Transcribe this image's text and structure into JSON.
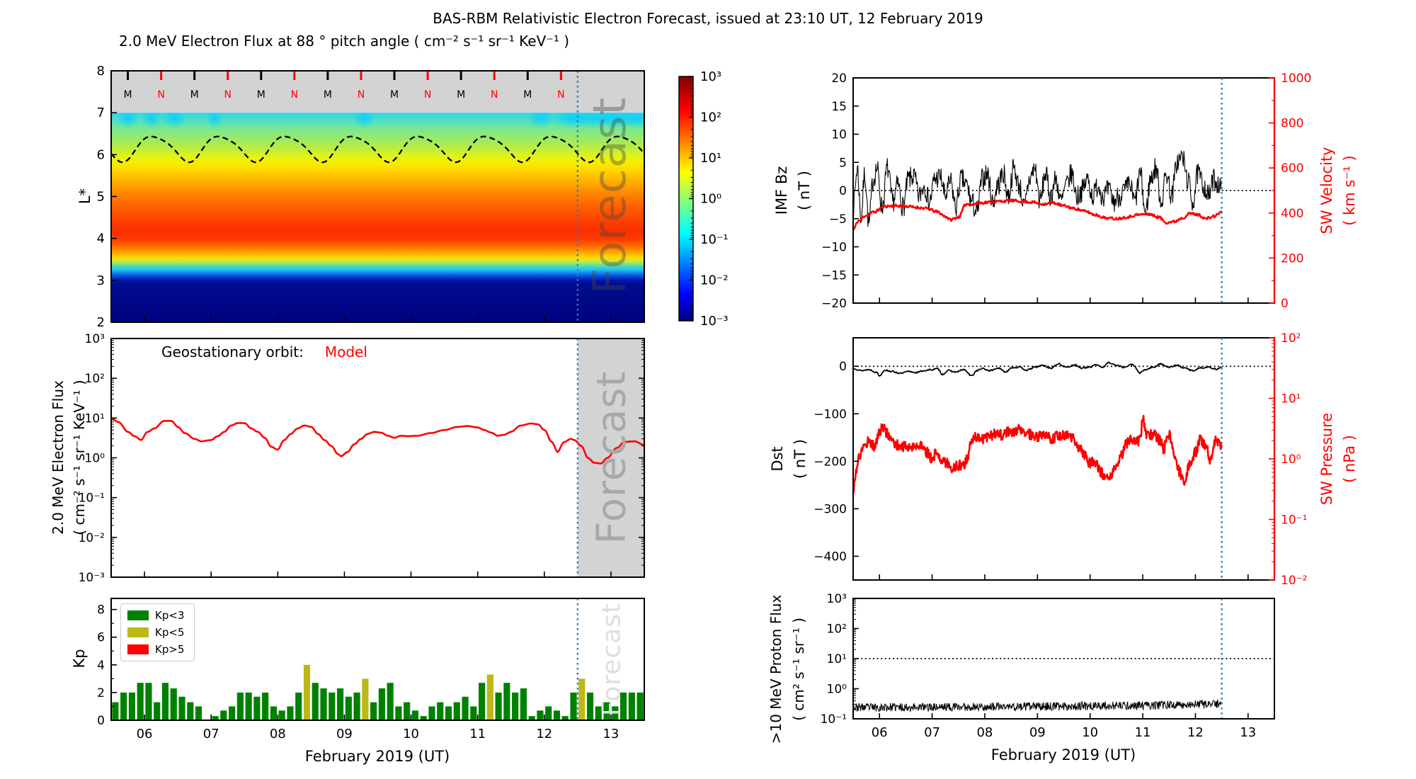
{
  "title": "BAS-RBM Relativistic Electron Forecast, issued at 23:10 UT, 12 February 2019",
  "watermark_label": "Forecast",
  "x_axis": {
    "label": "February 2019 (UT)",
    "range_days": [
      5.5,
      13.5
    ],
    "tick_values": [
      6,
      7,
      8,
      9,
      10,
      11,
      12,
      13
    ],
    "tick_labels": [
      "06",
      "07",
      "08",
      "09",
      "10",
      "11",
      "12",
      "13"
    ],
    "forecast_start_day": 12.5
  },
  "colors": {
    "forecast_line": "#2e7ebc",
    "model_red": "#ff0000",
    "kp_green": "#008000",
    "kp_yellow": "#bcb818",
    "kp_red": "#ff0000",
    "gray_band": "#d3d3d3",
    "forecast_shade": "#d3d3d3",
    "jet_colorbar_top_to_bottom": [
      "#800000",
      "#ff0000",
      "#ffff00",
      "#00ffff",
      "#0000ff",
      "#000080"
    ]
  },
  "panels": {
    "spectrogram": {
      "title": "2.0 MeV Electron Flux at 88 ° pitch angle ( cm⁻² s⁻¹ sr⁻¹ KeV⁻¹ )",
      "ylabel": "L*"
    },
    "geo_flux": {
      "ylabel_line1": "2.0 MeV Electron Flux",
      "ylabel_line2": "( cm⁻² s⁻¹ sr⁻¹ KeV⁻¹ )",
      "legend_prefix": "Geostationary orbit:",
      "legend_series": "Model"
    },
    "kp": {
      "ylabel": "Kp",
      "legend": [
        {
          "label": "Kp<3",
          "color": "#008000"
        },
        {
          "label": "Kp<5",
          "color": "#bcb818"
        },
        {
          "label": "Kp>5",
          "color": "#ff0000"
        }
      ]
    },
    "bz_vel": {
      "left_label_line1": "IMF Bz",
      "left_label_line2": "( nT )",
      "right_label_line1": "SW Velocity",
      "right_label_line2": "( km s⁻¹ )"
    },
    "dst_pres": {
      "left_label_line1": "Dst",
      "left_label_line2": "( nT )",
      "right_label_line1": "SW Pressure",
      "right_label_line2": "( nPa )"
    },
    "proton": {
      "ylabel_line1": ">10 MeV Proton Flux",
      "ylabel_line2": "( cm² s⁻¹ sr⁻¹ )"
    }
  },
  "chart_data": [
    {
      "id": "electron_flux_spectrogram",
      "type": "heatmap",
      "ylabel": "L*",
      "ylim": [
        2,
        8
      ],
      "ytick_values": [
        8,
        7,
        6,
        5,
        4,
        3,
        2
      ],
      "colormap": "jet",
      "colorbar": {
        "scale": "log",
        "limits_exponents": [
          3,
          -3
        ],
        "tick_exponents": [
          3,
          2,
          1,
          0,
          -1,
          -2,
          -3
        ]
      },
      "gray_band_Lstar": [
        7,
        8
      ],
      "flux_vs_Lstar_profile": [
        [
          7.0,
          0.2
        ],
        [
          6.6,
          1
        ],
        [
          6.2,
          4
        ],
        [
          6.0,
          10
        ],
        [
          5.8,
          25
        ],
        [
          5.5,
          60
        ],
        [
          5.0,
          200
        ],
        [
          4.6,
          400
        ],
        [
          4.2,
          500
        ],
        [
          3.9,
          150
        ],
        [
          3.7,
          30
        ],
        [
          3.5,
          5
        ],
        [
          3.3,
          0.3
        ],
        [
          3.15,
          0.02
        ],
        [
          3.0,
          0.002
        ],
        [
          2.0,
          0.001
        ]
      ],
      "noon_midnight_markers": {
        "start_day": 5.75,
        "step_days": 0.5,
        "count": 14,
        "alternation": [
          "M",
          "N"
        ],
        "midnight_color": "#000000",
        "noon_color": "#ff0000"
      },
      "geo_orbit_dashed_line": {
        "mean_Lstar": 6.16,
        "amplitude": 0.3,
        "period_days": 1.0,
        "phase_day": 5.9
      },
      "cyan_patch_times": [
        5.75,
        6.1,
        6.45,
        7.05,
        9.3,
        11.95,
        12.4,
        12.75,
        13.1,
        13.4
      ],
      "forecast_start_day": 12.5
    },
    {
      "id": "geo_electron_flux",
      "type": "line",
      "color": "#ff0000",
      "yscale": "log",
      "ylim_exponents": [
        3,
        -3
      ],
      "x": [
        5.5,
        5.6,
        5.75,
        5.85,
        5.95,
        6.05,
        6.15,
        6.3,
        6.4,
        6.5,
        6.6,
        6.75,
        6.85,
        7.0,
        7.1,
        7.2,
        7.3,
        7.4,
        7.5,
        7.6,
        7.7,
        7.8,
        7.9,
        8.0,
        8.1,
        8.2,
        8.3,
        8.4,
        8.5,
        8.6,
        8.7,
        8.8,
        8.9,
        8.95,
        9.05,
        9.15,
        9.25,
        9.35,
        9.45,
        9.55,
        9.65,
        9.75,
        9.85,
        9.95,
        10.1,
        10.3,
        10.5,
        10.7,
        10.85,
        11.0,
        11.1,
        11.2,
        11.3,
        11.4,
        11.5,
        11.65,
        11.8,
        11.9,
        12.0,
        12.1,
        12.2,
        12.3,
        12.4,
        12.45,
        12.55,
        12.65,
        12.75,
        12.85,
        12.95,
        13.1,
        13.2,
        13.35,
        13.5
      ],
      "y": [
        10,
        8,
        4.5,
        3.5,
        2.8,
        4.5,
        5.5,
        8.5,
        8.5,
        6,
        4.2,
        3.0,
        2.6,
        2.8,
        3.5,
        4.5,
        6.5,
        7.5,
        7.5,
        5.5,
        4.5,
        3.2,
        1.9,
        1.6,
        2.8,
        4.0,
        5.5,
        6.5,
        6.0,
        4.0,
        2.8,
        2.0,
        1.25,
        1.1,
        1.4,
        2.2,
        3.0,
        4.0,
        4.5,
        4.3,
        3.6,
        3.2,
        3.6,
        3.5,
        3.6,
        4.2,
        5.0,
        6.0,
        6.3,
        5.8,
        5.0,
        4.3,
        3.6,
        3.8,
        4.5,
        6.5,
        7.3,
        7.0,
        5.0,
        2.6,
        1.4,
        2.5,
        3.0,
        2.8,
        2.0,
        1.0,
        0.75,
        0.72,
        1.0,
        1.8,
        2.5,
        2.6,
        2.1
      ]
    },
    {
      "id": "kp_index",
      "type": "bar",
      "ylim": [
        0,
        8.8
      ],
      "ytick_values": [
        8,
        6,
        4,
        2,
        0
      ],
      "bar_start_day": 5.5,
      "bar_interval_days": 0.125,
      "color_rule": "green if Kp<3, yellow if 3<=Kp<5, red if Kp>5",
      "values": [
        1.3,
        2.0,
        2.0,
        2.7,
        2.7,
        1.3,
        2.7,
        2.3,
        1.7,
        1.3,
        1.0,
        0.0,
        0.3,
        0.7,
        1.0,
        2.0,
        2.0,
        1.7,
        2.0,
        1.0,
        0.7,
        1.0,
        2.0,
        4.0,
        2.7,
        2.3,
        2.0,
        2.3,
        1.7,
        2.0,
        3.0,
        1.3,
        2.3,
        2.7,
        1.0,
        1.3,
        0.7,
        0.3,
        1.0,
        1.3,
        1.0,
        1.3,
        1.7,
        1.0,
        2.7,
        3.3,
        2.0,
        2.7,
        2.0,
        2.3,
        0.3,
        0.7,
        1.0,
        0.7,
        0.3,
        2.0,
        3.0,
        2.0,
        1.0,
        1.3,
        1.0,
        2.0,
        2.0,
        2.0
      ]
    },
    {
      "id": "imf_bz_sw_velocity",
      "type": "line",
      "series": [
        {
          "name": "IMF Bz",
          "units": "nT",
          "color": "#000000",
          "axis": "left",
          "ylim": [
            -20,
            20
          ],
          "ytick_labels": [
            "20",
            "15",
            "10",
            "5",
            "0",
            "−5",
            "−10",
            "−15",
            "−20"
          ],
          "ytick_values": [
            20,
            15,
            10,
            5,
            0,
            -5,
            -10,
            -15,
            -20
          ],
          "zero_reference_line": 0,
          "noise_amplitude": 2.0,
          "x": [
            5.5,
            5.58,
            5.65,
            5.72,
            5.8,
            5.88,
            5.95,
            6.05,
            6.15,
            6.25,
            6.35,
            6.45,
            6.55,
            6.65,
            6.75,
            6.85,
            6.95,
            7.05,
            7.15,
            7.25,
            7.35,
            7.45,
            7.55,
            7.65,
            7.75,
            7.85,
            7.95,
            8.05,
            8.15,
            8.25,
            8.35,
            8.45,
            8.55,
            8.65,
            8.75,
            8.85,
            8.95,
            9.05,
            9.15,
            9.25,
            9.35,
            9.45,
            9.55,
            9.65,
            9.75,
            9.85,
            9.95,
            10.05,
            10.15,
            10.25,
            10.35,
            10.45,
            10.55,
            10.65,
            10.75,
            10.85,
            10.95,
            11.05,
            11.15,
            11.25,
            11.35,
            11.45,
            11.55,
            11.65,
            11.75,
            11.85,
            11.95,
            12.05,
            12.15,
            12.25,
            12.35,
            12.45,
            12.5
          ],
          "y": [
            -3,
            4,
            -5,
            3,
            -6,
            2,
            4,
            -3,
            4,
            -2,
            1,
            -3,
            2,
            2.5,
            -1,
            1,
            -2,
            2,
            2.5,
            -1,
            1.5,
            -3,
            2,
            1,
            -2,
            -4,
            2,
            3,
            -2,
            1,
            3,
            -1,
            4,
            1,
            -3,
            2,
            4,
            -2,
            3,
            -1,
            2,
            -2,
            1,
            3,
            -1,
            0,
            2,
            -1,
            1,
            -1,
            0,
            -2,
            -1,
            0,
            1,
            -2,
            3,
            -4,
            2,
            4,
            -2,
            3,
            -1,
            5,
            6,
            2,
            -2,
            3,
            1,
            -1,
            2,
            1,
            0
          ]
        },
        {
          "name": "SW Velocity",
          "units": "km s⁻¹",
          "color": "#ff0000",
          "axis": "right",
          "ylim": [
            0,
            1000
          ],
          "ytick_labels": [
            "1000",
            "800",
            "600",
            "400",
            "200",
            "0"
          ],
          "ytick_values": [
            1000,
            800,
            600,
            400,
            200,
            0
          ],
          "noise_amplitude": 6,
          "x": [
            5.5,
            5.6,
            5.75,
            5.9,
            6.1,
            6.3,
            6.5,
            6.7,
            6.9,
            7.1,
            7.25,
            7.35,
            7.5,
            7.65,
            7.75,
            7.9,
            8.1,
            8.3,
            8.5,
            8.7,
            8.9,
            9.1,
            9.3,
            9.5,
            9.7,
            9.9,
            10.1,
            10.3,
            10.5,
            10.7,
            10.9,
            11.1,
            11.3,
            11.45,
            11.6,
            11.75,
            11.9,
            12.05,
            12.2,
            12.35,
            12.5
          ],
          "y": [
            325,
            365,
            390,
            405,
            430,
            432,
            430,
            425,
            420,
            405,
            385,
            370,
            382,
            440,
            438,
            445,
            448,
            452,
            455,
            452,
            448,
            440,
            445,
            432,
            420,
            408,
            392,
            378,
            375,
            382,
            392,
            396,
            382,
            358,
            362,
            378,
            398,
            392,
            375,
            385,
            405
          ]
        }
      ]
    },
    {
      "id": "dst_sw_pressure",
      "type": "line",
      "series": [
        {
          "name": "Dst",
          "units": "nT",
          "color": "#000000",
          "axis": "left",
          "ylim": [
            -450,
            60
          ],
          "ytick_labels": [
            "0",
            "−100",
            "−200",
            "−300",
            "−400"
          ],
          "ytick_values": [
            0,
            -100,
            -200,
            -300,
            -400
          ],
          "zero_reference_line": 0,
          "noise_amplitude": 1.5,
          "x": [
            5.5,
            5.65,
            5.8,
            5.95,
            6.0,
            6.1,
            6.25,
            6.4,
            6.55,
            6.7,
            6.85,
            7.0,
            7.1,
            7.2,
            7.3,
            7.45,
            7.6,
            7.75,
            7.85,
            7.95,
            8.1,
            8.25,
            8.4,
            8.5,
            8.65,
            8.8,
            8.95,
            9.1,
            9.25,
            9.4,
            9.55,
            9.7,
            9.85,
            10.0,
            10.1,
            10.25,
            10.35,
            10.5,
            10.65,
            10.8,
            10.95,
            11.05,
            11.2,
            11.35,
            11.5,
            11.65,
            11.8,
            11.95,
            12.1,
            12.25,
            12.4,
            12.5
          ],
          "y": [
            -4,
            -9,
            -7,
            -13,
            -20,
            -8,
            -11,
            -15,
            -11,
            -13,
            -9,
            -7,
            -5,
            -17,
            -9,
            -12,
            -7,
            -20,
            -9,
            -5,
            -9,
            -4,
            -12,
            -3,
            -2,
            -8,
            -2,
            2,
            -4,
            5,
            -2,
            3,
            -4,
            -2,
            4,
            -2,
            8,
            2,
            -2,
            4,
            -14,
            -7,
            -2,
            5,
            -2,
            2,
            -4,
            -9,
            -3,
            -2,
            -6,
            -2
          ]
        },
        {
          "name": "SW Pressure",
          "units": "nPa",
          "color": "#ff0000",
          "axis": "right",
          "yscale": "log",
          "ylim_exponents": [
            2,
            -2
          ],
          "ytick_exponents": [
            2,
            1,
            0,
            -1,
            -2
          ],
          "noise_log_amplitude": 0.09,
          "x": [
            5.5,
            5.55,
            5.62,
            5.7,
            5.8,
            5.9,
            6.0,
            6.05,
            6.15,
            6.25,
            6.35,
            6.5,
            6.65,
            6.8,
            6.9,
            7.0,
            7.1,
            7.2,
            7.3,
            7.4,
            7.5,
            7.6,
            7.68,
            7.75,
            7.85,
            7.95,
            8.1,
            8.25,
            8.35,
            8.45,
            8.55,
            8.65,
            8.75,
            8.85,
            8.95,
            9.1,
            9.25,
            9.4,
            9.55,
            9.65,
            9.8,
            9.9,
            10.0,
            10.1,
            10.2,
            10.3,
            10.4,
            10.5,
            10.6,
            10.7,
            10.78,
            10.85,
            10.95,
            11.0,
            11.08,
            11.2,
            11.3,
            11.4,
            11.5,
            11.6,
            11.7,
            11.78,
            11.9,
            12.0,
            12.1,
            12.18,
            12.28,
            12.4,
            12.5
          ],
          "y": [
            0.28,
            0.6,
            1.1,
            1.6,
            2.0,
            1.6,
            2.6,
            3.4,
            2.6,
            1.9,
            1.7,
            1.6,
            1.5,
            1.8,
            1.3,
            1.0,
            1.3,
            0.9,
            0.85,
            0.7,
            0.78,
            0.8,
            1.0,
            2.2,
            2.3,
            2.2,
            2.4,
            2.7,
            2.4,
            2.9,
            2.6,
            3.1,
            2.7,
            2.5,
            2.2,
            2.4,
            2.2,
            2.4,
            2.5,
            2.2,
            1.5,
            1.1,
            0.85,
            0.9,
            0.6,
            0.45,
            0.5,
            0.75,
            1.2,
            1.8,
            2.2,
            1.8,
            2.0,
            4.5,
            2.4,
            2.6,
            2.1,
            1.5,
            2.4,
            1.1,
            0.6,
            0.42,
            0.8,
            1.3,
            2.1,
            1.7,
            1.0,
            2.1,
            1.4
          ]
        }
      ]
    },
    {
      "id": "proton_flux",
      "type": "line",
      "color": "#000000",
      "yscale": "log",
      "ylim_exponents": [
        3,
        -1
      ],
      "ytick_exponents": [
        3,
        2,
        1,
        0,
        -1
      ],
      "threshold_line_value": 10,
      "baseline": [
        [
          5.5,
          0.24
        ],
        [
          8.0,
          0.25
        ],
        [
          10.5,
          0.27
        ],
        [
          12.3,
          0.3
        ],
        [
          12.5,
          0.32
        ]
      ],
      "noise_log_amplitude": 0.14
    }
  ]
}
